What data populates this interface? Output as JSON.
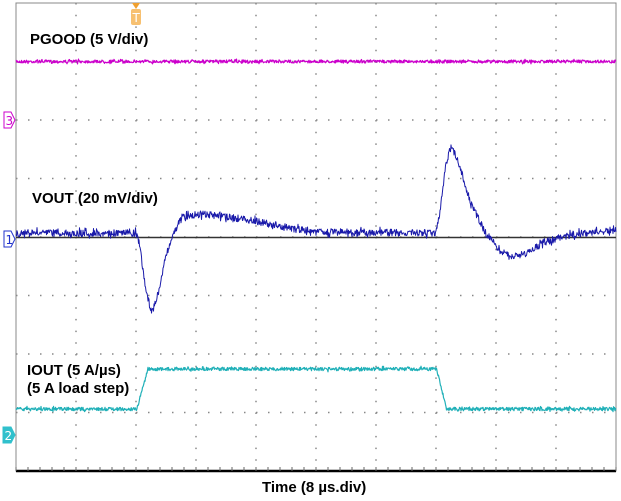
{
  "chart_data": {
    "type": "line",
    "title": "",
    "xlabel": "Time (8 µs.div)",
    "xlim": [
      0,
      80
    ],
    "grid": true,
    "trigger_marker": "T",
    "series": [
      {
        "name": "PGOOD (5 V/div)",
        "channel": "3",
        "color": "#cc00cc",
        "x": [
          0,
          80
        ],
        "y": [
          5,
          5
        ]
      },
      {
        "name": "VOUT (20 mV/div)",
        "channel": "1",
        "color": "#1a1aaa",
        "x": [
          0,
          16.0,
          16.5,
          17.3,
          18.1,
          18.9,
          20.0,
          21.1,
          22.1,
          24.5,
          28.5,
          32.5,
          36.5,
          40.5,
          56.0,
          56.5,
          57.3,
          58.0,
          58.9,
          60.5,
          62.5,
          64.5,
          65.9,
          67.9,
          70.5,
          73.9,
          80
        ],
        "y": [
          1.5,
          1.5,
          -2.6,
          -18,
          -26,
          -19.7,
          -6,
          1.9,
          7,
          8,
          7,
          5.3,
          3.2,
          1.9,
          1.5,
          7.7,
          24.8,
          30.9,
          26.5,
          12.8,
          1.9,
          -4.3,
          -6.7,
          -5.6,
          -1.5,
          0.9,
          2.6
        ]
      },
      {
        "name": "IOUT (5 A/µs)",
        "subtitle": "(5 A load step)",
        "channel": "2",
        "color": "#20b0b8",
        "x": [
          0,
          16.1,
          17.6,
          56.1,
          57.4,
          80
        ],
        "y": [
          0,
          0,
          5,
          5,
          0,
          0
        ]
      }
    ]
  }
}
